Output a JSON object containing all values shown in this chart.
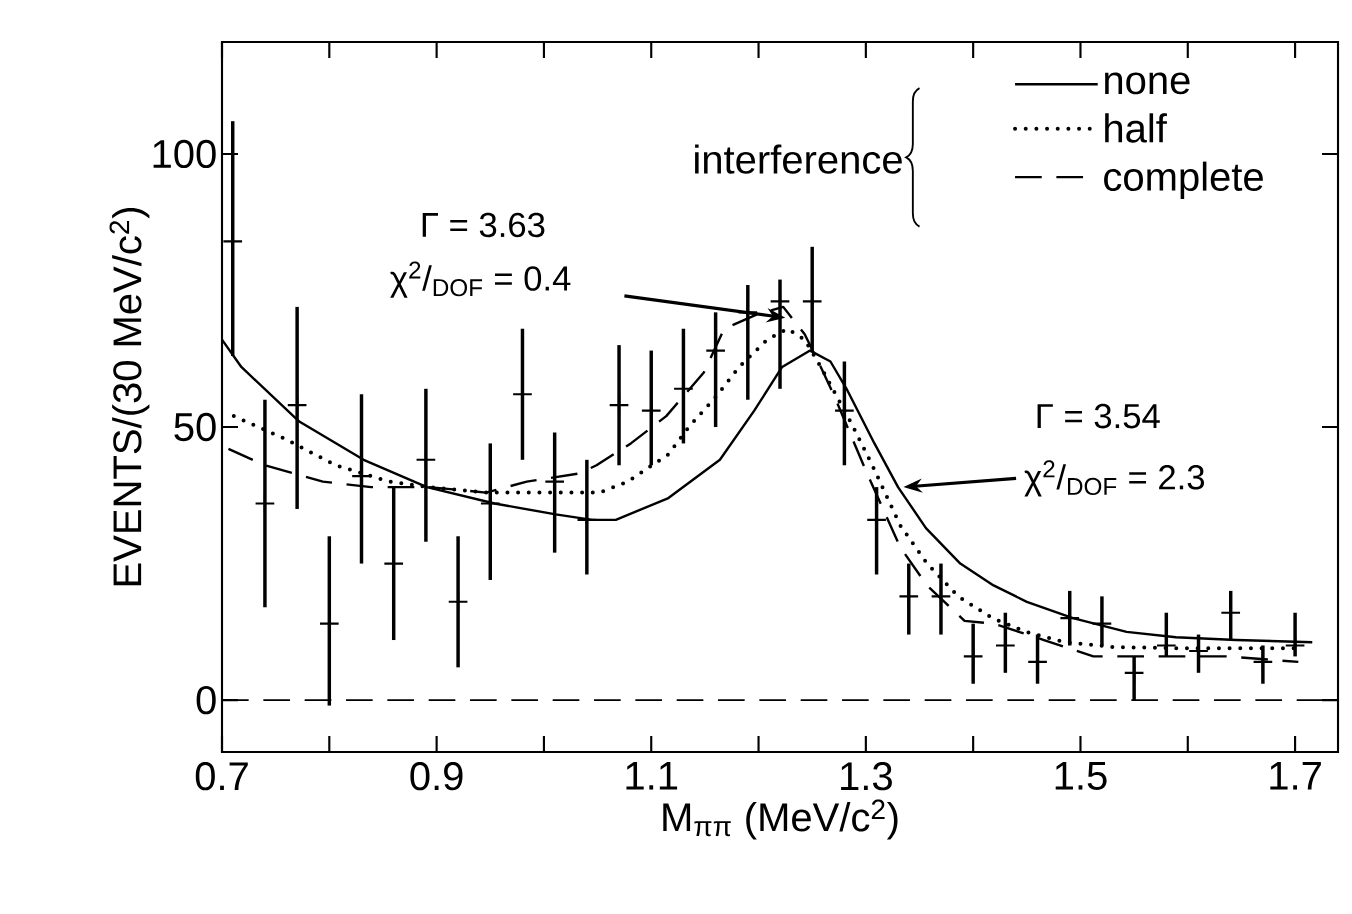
{
  "chart_data": {
    "type": "scatter",
    "xlabel": "M$_{ππ}$     (MeV/c$^{2}$)",
    "ylabel": "EVENTS/(30 MeV/c$^{2}$)",
    "legend_title": "interference",
    "legend": "top right",
    "xlim": [
      0.7,
      1.74
    ],
    "ylim": [
      -9.5,
      120.5
    ],
    "xticks": [
      0.7,
      {
        "value": 0.8,
        "label": null
      },
      0.9,
      {
        "value": 1.0,
        "label": null
      },
      1.1,
      {
        "value": 1.2,
        "label": null
      },
      1.3,
      {
        "value": 1.4,
        "label": null
      },
      1.5,
      {
        "value": 1.6,
        "label": null
      },
      1.7
    ],
    "yticks": [
      0,
      50,
      100
    ],
    "ref_lines": [
      {
        "axis": "y",
        "value": 0,
        "line_style": "dashed"
      }
    ],
    "annotations": [
      "Γ = 3.63",
      "χ$^{2}$/$_{DOF}$ = 0.4",
      "Γ = 3.54",
      "χ$^{2}$/$_{DOF}$ = 2.3"
    ],
    "series": [
      {
        "type": "scatter",
        "color": "#000000",
        "marker": "cross",
        "x": [
          0.71,
          0.74,
          0.77,
          0.8,
          0.83,
          0.86,
          0.89,
          0.92,
          0.95,
          0.98,
          1.01,
          1.04,
          1.07,
          1.1,
          1.13,
          1.16,
          1.19,
          1.22,
          1.25,
          1.28,
          1.31,
          1.34,
          1.37,
          1.4,
          1.43,
          1.46,
          1.49,
          1.52,
          1.55,
          1.58,
          1.61,
          1.64,
          1.67,
          1.7
        ],
        "values": [
          84,
          36,
          54,
          14,
          41,
          25,
          44,
          18,
          36,
          56,
          40,
          33,
          54,
          53,
          57,
          64,
          71,
          73,
          73,
          53,
          33,
          19,
          19,
          8,
          10,
          7,
          15,
          14,
          5,
          10,
          9,
          16,
          7,
          10
        ],
        "errors": [
          [
            63,
            106
          ],
          [
            17,
            55
          ],
          [
            35,
            72
          ],
          [
            -1,
            30
          ],
          [
            25,
            56
          ],
          [
            11,
            39
          ],
          [
            29,
            57
          ],
          [
            6,
            30
          ],
          [
            22,
            47
          ],
          [
            44,
            68
          ],
          [
            27,
            49
          ],
          [
            23,
            44
          ],
          [
            43,
            65
          ],
          [
            43,
            64
          ],
          [
            47,
            68
          ],
          [
            50,
            71
          ],
          [
            55,
            76
          ],
          [
            57,
            77
          ],
          [
            64,
            83
          ],
          [
            43,
            62
          ],
          [
            23,
            39
          ],
          [
            12,
            25
          ],
          [
            12,
            25
          ],
          [
            3,
            14
          ],
          [
            5,
            16
          ],
          [
            3,
            12
          ],
          [
            10,
            20
          ],
          [
            10,
            19
          ],
          [
            0,
            8
          ],
          [
            8,
            16
          ],
          [
            5,
            12
          ],
          [
            11,
            20
          ],
          [
            3,
            10
          ],
          [
            8,
            16
          ]
        ]
      },
      {
        "type": "line",
        "name": "none",
        "color": "#000000",
        "line_style": "solid",
        "x": [
          0.7,
          0.718,
          0.772,
          0.832,
          0.891,
          0.954,
          1.011,
          1.045,
          1.067,
          1.116,
          1.164,
          1.196,
          1.222,
          1.248,
          1.267,
          1.282,
          1.308,
          1.33,
          1.356,
          1.388,
          1.419,
          1.45,
          1.493,
          1.543,
          1.589,
          1.645,
          1.716
        ],
        "values": [
          66,
          61,
          51,
          44,
          39,
          36,
          34,
          33,
          33,
          37,
          44,
          53,
          61,
          64,
          62,
          57,
          47,
          39,
          31.5,
          25,
          21,
          18,
          15,
          12.5,
          11.5,
          11,
          10.6
        ]
      },
      {
        "type": "line",
        "name": "half",
        "color": "#000000",
        "line_style": "dotted",
        "x": [
          0.711,
          0.757,
          0.806,
          0.856,
          0.893,
          0.946,
          0.991,
          1.033,
          1.052,
          1.078,
          1.116,
          1.135,
          1.16,
          1.182,
          1.208,
          1.227,
          1.243,
          1.258,
          1.287,
          1.306,
          1.332,
          1.357,
          1.386,
          1.418,
          1.449,
          1.486,
          1.532,
          1.594,
          1.703
        ],
        "values": [
          52,
          48,
          43,
          40,
          39,
          38,
          38,
          38,
          38,
          40,
          45,
          50,
          55.5,
          61,
          66,
          68,
          66,
          61,
          50.5,
          43,
          32,
          25,
          19,
          15,
          12.5,
          10.6,
          9.7,
          9.5,
          9.5
        ]
      },
      {
        "type": "line",
        "name": "complete",
        "color": "#000000",
        "line_style": "dashed",
        "x": [
          0.706,
          0.74,
          0.794,
          0.839,
          0.893,
          0.946,
          0.984,
          1.033,
          1.049,
          1.081,
          1.114,
          1.149,
          1.168,
          1.197,
          1.223,
          1.243,
          1.258,
          1.271,
          1.3,
          1.332,
          1.357,
          1.392,
          1.419,
          1.466,
          1.512,
          1.574,
          1.636,
          1.703
        ],
        "values": [
          46,
          43,
          40,
          39,
          39,
          38,
          40,
          41.5,
          43,
          47,
          52,
          60,
          68,
          70.5,
          72,
          67,
          61,
          55.5,
          42,
          28,
          21,
          14.5,
          14,
          11,
          8,
          8,
          8,
          7
        ]
      }
    ]
  }
}
